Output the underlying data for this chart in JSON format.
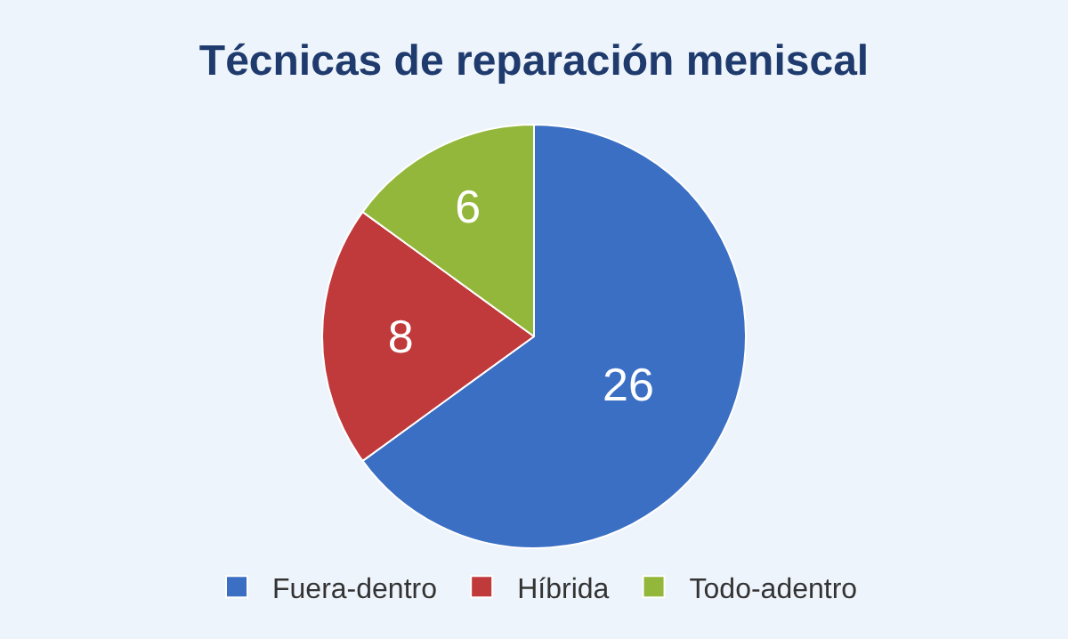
{
  "chart_data": {
    "type": "pie",
    "title": "Técnicas de reparación meniscal",
    "categories": [
      "Fuera-dentro",
      "Híbrida",
      "Todo-adentro"
    ],
    "values": [
      26,
      8,
      6
    ],
    "colors": [
      "#3a6fc4",
      "#c0393b",
      "#92b73a"
    ],
    "data_labels": true,
    "legend": "bottom"
  }
}
